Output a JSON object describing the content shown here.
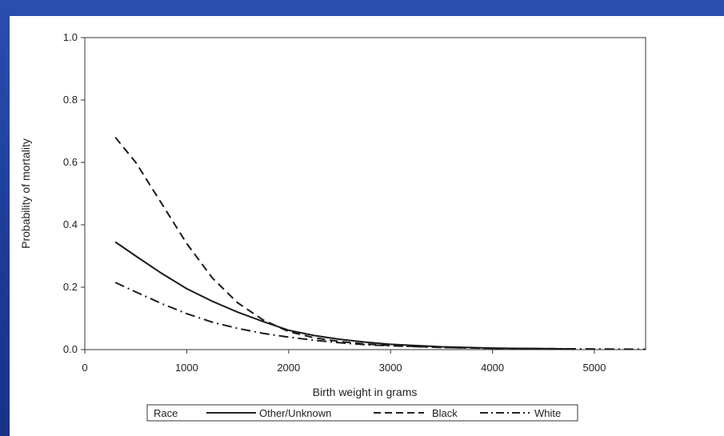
{
  "chart_data": {
    "type": "line",
    "title": "",
    "xlabel": "Birth weight in grams",
    "ylabel": "Probability of mortality",
    "xlim": [
      0,
      5500
    ],
    "ylim": [
      0,
      1.0
    ],
    "xticks": [
      "0",
      "1000",
      "2000",
      "3000",
      "4000",
      "5000"
    ],
    "yticks": [
      "0.0",
      "0.2",
      "0.4",
      "0.6",
      "0.8",
      "1.0"
    ],
    "grid": false,
    "legend": {
      "placement": "bottom",
      "title": "Race",
      "entries": [
        "Other/Unknown",
        "Black",
        "White"
      ]
    },
    "series": [
      {
        "name": "Other/Unknown",
        "style": "solid",
        "x": [
          300,
          500,
          750,
          1000,
          1250,
          1500,
          1750,
          2000,
          2250,
          2500,
          2750,
          3000,
          3500,
          4000,
          4500,
          4800
        ],
        "y": [
          0.345,
          0.3,
          0.245,
          0.195,
          0.155,
          0.12,
          0.09,
          0.062,
          0.045,
          0.033,
          0.024,
          0.017,
          0.009,
          0.005,
          0.003,
          0.002
        ]
      },
      {
        "name": "Black",
        "style": "dashed",
        "x": [
          300,
          500,
          750,
          1000,
          1250,
          1500,
          1750,
          2000,
          2250,
          2500,
          2750,
          3000,
          3500,
          4000,
          4500,
          4800
        ],
        "y": [
          0.68,
          0.6,
          0.47,
          0.34,
          0.23,
          0.15,
          0.095,
          0.058,
          0.038,
          0.026,
          0.018,
          0.013,
          0.007,
          0.004,
          0.002,
          0.001
        ]
      },
      {
        "name": "White",
        "style": "dashdot",
        "x": [
          300,
          500,
          750,
          1000,
          1250,
          1500,
          1750,
          2000,
          2250,
          2500,
          2750,
          3000,
          3500,
          4000,
          4500,
          5000,
          5500
        ],
        "y": [
          0.215,
          0.185,
          0.148,
          0.115,
          0.088,
          0.068,
          0.052,
          0.04,
          0.03,
          0.022,
          0.016,
          0.012,
          0.007,
          0.004,
          0.003,
          0.002,
          0.001
        ]
      }
    ]
  }
}
